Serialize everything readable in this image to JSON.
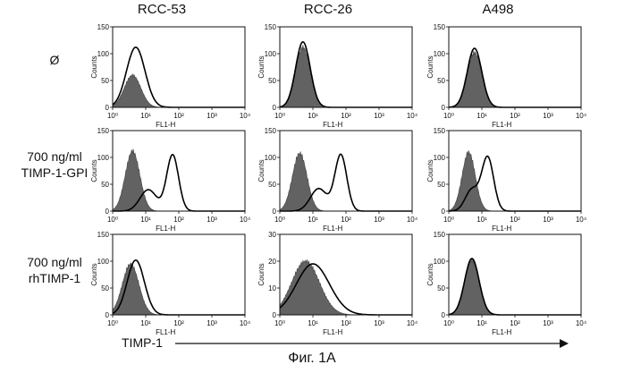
{
  "column_titles": [
    "RCC-53",
    "RCC-26",
    "A498"
  ],
  "row_labels": [
    [
      "Ø"
    ],
    [
      "700 ng/ml",
      "TIMP-1-GPI"
    ],
    [
      "700 ng/ml",
      "rhTIMP-1"
    ]
  ],
  "x_axis_label": "TIMP-1",
  "caption": "Фиг. 1А",
  "colors": {
    "filled": "#555555",
    "outline": "#000000"
  },
  "chart_data": [
    {
      "type": "area",
      "cell_line": "RCC-53",
      "condition": "Ø",
      "xlabel": "FL1-H",
      "ylabel": "Counts",
      "x_scale": "log",
      "xlim": [
        1,
        10000
      ],
      "ylim": [
        0,
        150
      ],
      "x_ticks": [
        "10⁰",
        "10¹",
        "10²",
        "10³",
        "10⁴"
      ],
      "y_ticks": [
        "0",
        "50",
        "100",
        "150"
      ],
      "series": [
        {
          "style": "filled",
          "peaks": [
            {
              "center": 4,
              "height": 60,
              "width": 0.25
            }
          ]
        },
        {
          "style": "outline",
          "peaks": [
            {
              "center": 5,
              "height": 112,
              "width": 0.28
            }
          ]
        }
      ]
    },
    {
      "type": "area",
      "cell_line": "RCC-26",
      "condition": "Ø",
      "xlabel": "FL1-H",
      "ylabel": "Counts",
      "x_scale": "log",
      "xlim": [
        1,
        10000
      ],
      "ylim": [
        0,
        150
      ],
      "x_ticks": [
        "10⁰",
        "10¹",
        "10²",
        "10³",
        "10⁴"
      ],
      "y_ticks": [
        "0",
        "50",
        "100",
        "150"
      ],
      "series": [
        {
          "style": "filled",
          "peaks": [
            {
              "center": 5,
              "height": 112,
              "width": 0.22
            }
          ]
        },
        {
          "style": "outline",
          "peaks": [
            {
              "center": 5,
              "height": 122,
              "width": 0.22
            }
          ]
        }
      ]
    },
    {
      "type": "area",
      "cell_line": "A498",
      "condition": "Ø",
      "xlabel": "FL1-H",
      "ylabel": "Counts",
      "x_scale": "log",
      "xlim": [
        1,
        10000
      ],
      "ylim": [
        0,
        150
      ],
      "x_ticks": [
        "10⁰",
        "10¹",
        "10²",
        "10³",
        "10⁴"
      ],
      "y_ticks": [
        "0",
        "50",
        "100",
        "150"
      ],
      "series": [
        {
          "style": "filled",
          "peaks": [
            {
              "center": 6,
              "height": 102,
              "width": 0.22
            }
          ]
        },
        {
          "style": "outline",
          "peaks": [
            {
              "center": 6,
              "height": 110,
              "width": 0.22
            }
          ]
        }
      ]
    },
    {
      "type": "area",
      "cell_line": "RCC-53",
      "condition": "700 ng/ml TIMP-1-GPI",
      "xlabel": "FL1-H",
      "ylabel": "Counts",
      "x_scale": "log",
      "xlim": [
        1,
        10000
      ],
      "ylim": [
        0,
        150
      ],
      "x_ticks": [
        "10⁰",
        "10¹",
        "10²",
        "10³",
        "10⁴"
      ],
      "y_ticks": [
        "0",
        "50",
        "100",
        "150"
      ],
      "series": [
        {
          "style": "filled",
          "peaks": [
            {
              "center": 4,
              "height": 112,
              "width": 0.22
            }
          ]
        },
        {
          "style": "outline",
          "peaks": [
            {
              "center": 12,
              "height": 40,
              "width": 0.25
            },
            {
              "center": 65,
              "height": 105,
              "width": 0.18
            }
          ]
        }
      ]
    },
    {
      "type": "area",
      "cell_line": "RCC-26",
      "condition": "700 ng/ml TIMP-1-GPI",
      "xlabel": "FL1-H",
      "ylabel": "Counts",
      "x_scale": "log",
      "xlim": [
        1,
        10000
      ],
      "ylim": [
        0,
        150
      ],
      "x_ticks": [
        "10⁰",
        "10¹",
        "10²",
        "10³",
        "10⁴"
      ],
      "y_ticks": [
        "0",
        "50",
        "100",
        "150"
      ],
      "series": [
        {
          "style": "filled",
          "peaks": [
            {
              "center": 4,
              "height": 108,
              "width": 0.22
            }
          ]
        },
        {
          "style": "outline",
          "peaks": [
            {
              "center": 15,
              "height": 42,
              "width": 0.25
            },
            {
              "center": 70,
              "height": 105,
              "width": 0.18
            }
          ]
        }
      ]
    },
    {
      "type": "area",
      "cell_line": "A498",
      "condition": "700 ng/ml TIMP-1-GPI",
      "xlabel": "FL1-H",
      "ylabel": "Counts",
      "x_scale": "log",
      "xlim": [
        1,
        10000
      ],
      "ylim": [
        0,
        150
      ],
      "x_ticks": [
        "10⁰",
        "10¹",
        "10²",
        "10³",
        "10⁴"
      ],
      "y_ticks": [
        "0",
        "50",
        "100",
        "150"
      ],
      "series": [
        {
          "style": "filled",
          "peaks": [
            {
              "center": 4,
              "height": 110,
              "width": 0.2
            }
          ]
        },
        {
          "style": "outline",
          "peaks": [
            {
              "center": 5,
              "height": 40,
              "width": 0.2
            },
            {
              "center": 15,
              "height": 100,
              "width": 0.18
            }
          ]
        }
      ]
    },
    {
      "type": "area",
      "cell_line": "RCC-53",
      "condition": "700 ng/ml rhTIMP-1",
      "xlabel": "FL1-H",
      "ylabel": "Counts",
      "x_scale": "log",
      "xlim": [
        1,
        10000
      ],
      "ylim": [
        0,
        150
      ],
      "x_ticks": [
        "10⁰",
        "10¹",
        "10²",
        "10³",
        "10⁴"
      ],
      "y_ticks": [
        "0",
        "50",
        "100",
        "150"
      ],
      "series": [
        {
          "style": "filled",
          "peaks": [
            {
              "center": 3.5,
              "height": 95,
              "width": 0.25
            }
          ]
        },
        {
          "style": "outline",
          "peaks": [
            {
              "center": 5,
              "height": 102,
              "width": 0.26
            }
          ]
        }
      ]
    },
    {
      "type": "area",
      "cell_line": "RCC-26",
      "condition": "700 ng/ml rhTIMP-1",
      "xlabel": "FL1-H",
      "ylabel": "Counts",
      "x_scale": "log",
      "xlim": [
        1,
        10000
      ],
      "ylim": [
        0,
        30
      ],
      "x_ticks": [
        "10⁰",
        "10¹",
        "10²",
        "10³",
        "10⁴"
      ],
      "y_ticks": [
        "0",
        "10",
        "20",
        "30"
      ],
      "series": [
        {
          "style": "filled",
          "peaks": [
            {
              "center": 6,
              "height": 20,
              "width": 0.42
            }
          ]
        },
        {
          "style": "outline",
          "peaks": [
            {
              "center": 10,
              "height": 19,
              "width": 0.5
            }
          ]
        }
      ]
    },
    {
      "type": "area",
      "cell_line": "A498",
      "condition": "700 ng/ml rhTIMP-1",
      "xlabel": "FL1-H",
      "ylabel": "Counts",
      "x_scale": "log",
      "xlim": [
        1,
        10000
      ],
      "ylim": [
        0,
        150
      ],
      "x_ticks": [
        "10⁰",
        "10¹",
        "10²",
        "10³",
        "10⁴"
      ],
      "y_ticks": [
        "0",
        "50",
        "100",
        "150"
      ],
      "series": [
        {
          "style": "filled",
          "peaks": [
            {
              "center": 5,
              "height": 102,
              "width": 0.22
            }
          ]
        },
        {
          "style": "outline",
          "peaks": [
            {
              "center": 5,
              "height": 105,
              "width": 0.22
            }
          ]
        }
      ]
    }
  ]
}
